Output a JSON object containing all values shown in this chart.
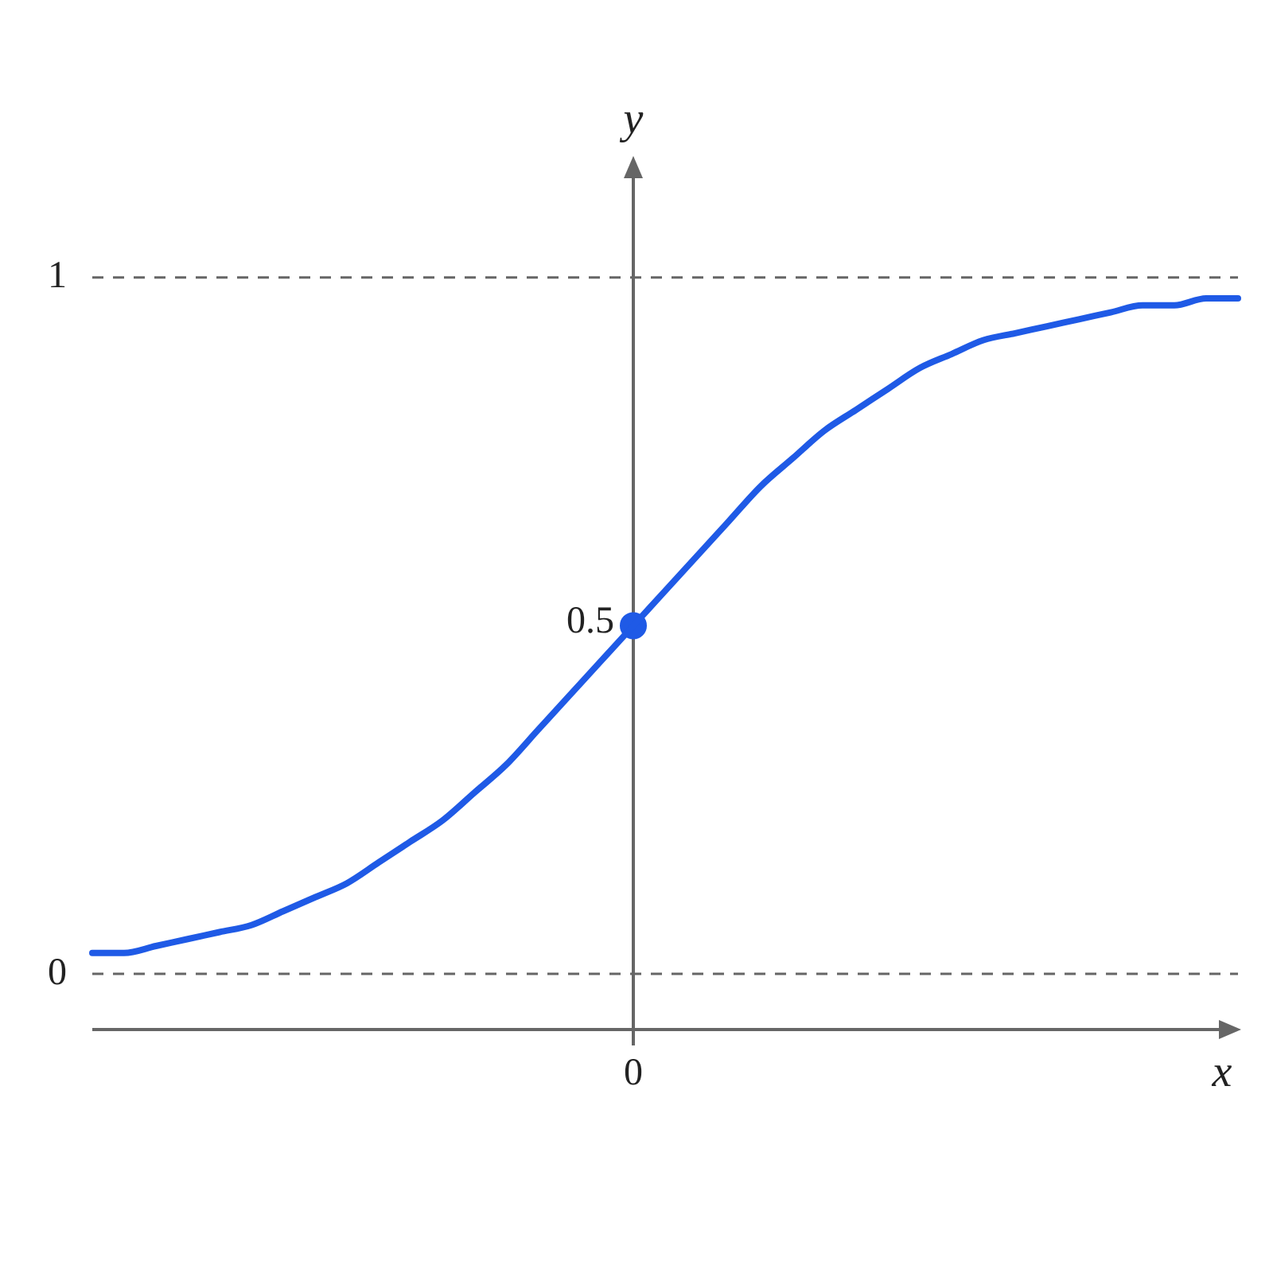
{
  "chart_data": {
    "type": "line",
    "xlabel": "x",
    "ylabel": "y",
    "categories": [
      null,
      null,
      null,
      null,
      null,
      null,
      null,
      null,
      null,
      null,
      null,
      null,
      null,
      null,
      null,
      null,
      null,
      "0",
      null,
      null,
      null,
      null,
      null,
      null,
      null,
      null,
      null,
      null,
      null,
      null,
      null,
      null,
      null,
      null,
      null,
      null,
      null
    ],
    "series": [
      {
        "color": "#1f5ae6",
        "values": [
          0.03,
          0.03,
          0.04,
          0.05,
          0.06,
          0.07,
          0.09,
          0.11,
          0.13,
          0.16,
          0.19,
          0.22,
          0.26,
          0.3,
          0.35,
          0.4,
          0.45,
          0.5,
          0.55,
          0.6,
          0.65,
          0.7,
          0.74,
          0.78,
          0.81,
          0.84,
          0.87,
          0.89,
          0.91,
          0.92,
          0.93,
          0.94,
          0.95,
          0.96,
          0.96,
          0.97,
          0.97
        ]
      },
      {
        "type": "scatter",
        "color": "#1f5ae6",
        "marker": "circle",
        "x": [
          "0"
        ],
        "values": [
          0.5
        ]
      }
    ],
    "ylim": [
      -0.08,
      1.17
    ],
    "yticks": [
      0,
      1
    ],
    "marker": "none",
    "legend": false,
    "annotations": [
      {
        "text": "0.5",
        "x": "0",
        "y": 0.5
      }
    ],
    "ref_lines": [
      {
        "axis": "y",
        "value": 0,
        "color": "#666666",
        "line_style": "dashed"
      },
      {
        "axis": "y",
        "value": 1,
        "color": "#666666",
        "line_style": "dashed"
      }
    ]
  }
}
